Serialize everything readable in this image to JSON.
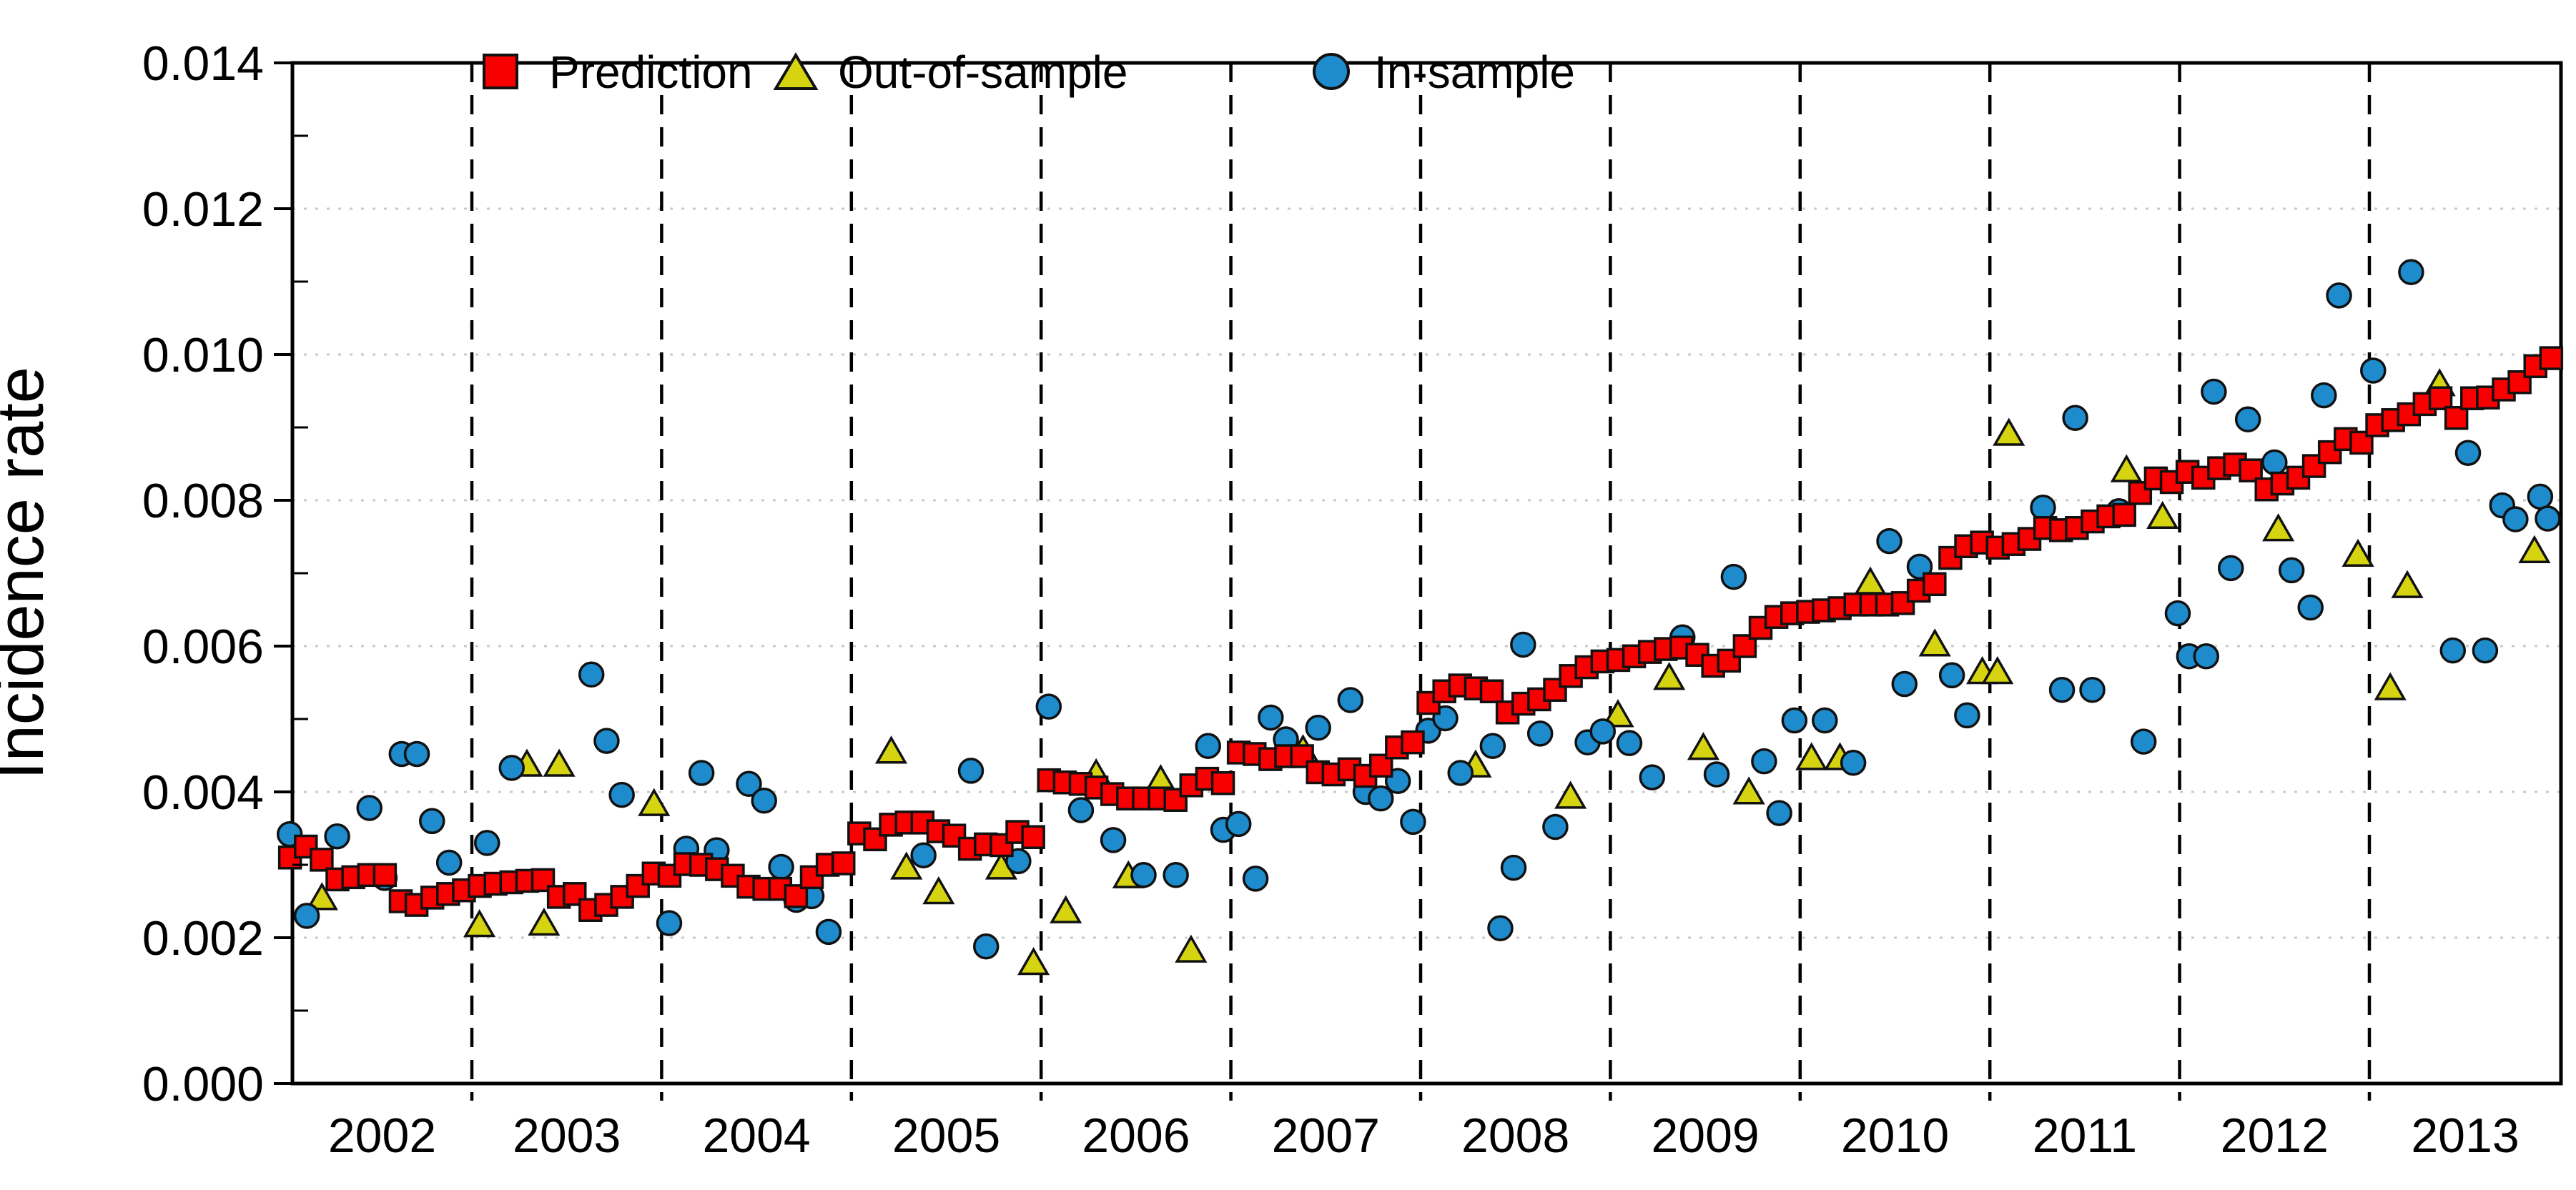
{
  "chart_data": {
    "type": "scatter",
    "title": "",
    "xlabel": "",
    "ylabel": "Incidence rate",
    "ylim": [
      0,
      0.014
    ],
    "xlim_years": [
      2002,
      2014
    ],
    "y_tick_labels": [
      "0.000",
      "0.002",
      "0.004",
      "0.006",
      "0.008",
      "0.010",
      "0.012",
      "0.014"
    ],
    "x_tick_labels": [
      "2002",
      "2003",
      "2004",
      "2005",
      "2006",
      "2007",
      "2008",
      "2009",
      "2010",
      "2011",
      "2012",
      "2013"
    ],
    "grid": {
      "horizontal": "dotted light gray at each 0.002",
      "vertical": "black dashed at year boundaries"
    },
    "legend_position": "top inside, horizontal",
    "colors": {
      "prediction": "#f80000",
      "out_of_sample": "#d6d411",
      "in_sample": "#1e8bcc",
      "marker_stroke": "#111111",
      "gridline": "#c9c9c9",
      "frame": "#000000"
    },
    "series": [
      {
        "name": "Prediction",
        "marker": "square",
        "color": "#f80000",
        "cadence": "monthly",
        "start_year": 2002,
        "values": [
          0.0031,
          0.00325,
          0.00307,
          0.0028,
          0.00283,
          0.00286,
          0.00286,
          0.0025,
          0.00245,
          0.00255,
          0.0026,
          0.00265,
          0.00271,
          0.00274,
          0.00276,
          0.00278,
          0.00279,
          0.00256,
          0.0026,
          0.00238,
          0.00245,
          0.00256,
          0.00271,
          0.00288,
          0.00285,
          0.00301,
          0.003,
          0.00294,
          0.00285,
          0.0027,
          0.00267,
          0.00267,
          0.00257,
          0.00283,
          0.003,
          0.00302,
          0.00343,
          0.00335,
          0.00355,
          0.00358,
          0.00358,
          0.00346,
          0.0034,
          0.00322,
          0.00328,
          0.00327,
          0.00345,
          0.00338,
          0.00416,
          0.00413,
          0.00411,
          0.00406,
          0.00397,
          0.00391,
          0.00391,
          0.00391,
          0.00389,
          0.00409,
          0.00418,
          0.00412,
          0.00454,
          0.00452,
          0.00445,
          0.00449,
          0.00449,
          0.00427,
          0.00424,
          0.00431,
          0.00422,
          0.00436,
          0.00461,
          0.00468,
          0.00522,
          0.00538,
          0.00546,
          0.00542,
          0.00538,
          0.00509,
          0.00521,
          0.00527,
          0.0054,
          0.00559,
          0.00571,
          0.00579,
          0.00581,
          0.00586,
          0.00592,
          0.00596,
          0.00598,
          0.00588,
          0.00573,
          0.0058,
          0.006,
          0.00625,
          0.0064,
          0.00645,
          0.00647,
          0.00649,
          0.00652,
          0.00657,
          0.00657,
          0.00657,
          0.00659,
          0.00676,
          0.00685,
          0.00721,
          0.00737,
          0.00742,
          0.00735,
          0.0074,
          0.00747,
          0.00762,
          0.00759,
          0.00762,
          0.00771,
          0.00778,
          0.0078,
          0.0081,
          0.0083,
          0.00825,
          0.00839,
          0.00831,
          0.00844,
          0.00849,
          0.00841,
          0.00815,
          0.00823,
          0.00831,
          0.00847,
          0.00866,
          0.00884,
          0.00879,
          0.00903,
          0.0091,
          0.00918,
          0.00932,
          0.0094,
          0.00913,
          0.0094,
          0.00941,
          0.00952,
          0.00962,
          0.00984,
          0.00995
        ]
      },
      {
        "name": "Out-of-sample",
        "marker": "triangle",
        "color": "#d6d411",
        "points": [
          [
            2002.21,
            0.00252
          ],
          [
            2003.04,
            0.00215
          ],
          [
            2003.29,
            0.00435
          ],
          [
            2003.38,
            0.00217
          ],
          [
            2003.46,
            0.00435
          ],
          [
            2003.96,
            0.00381
          ],
          [
            2005.21,
            0.00453
          ],
          [
            2005.29,
            0.00294
          ],
          [
            2005.46,
            0.0026
          ],
          [
            2005.79,
            0.00294
          ],
          [
            2005.96,
            0.00163
          ],
          [
            2006.13,
            0.00234
          ],
          [
            2006.29,
            0.00422
          ],
          [
            2006.46,
            0.00282
          ],
          [
            2006.63,
            0.00414
          ],
          [
            2006.79,
            0.0018
          ],
          [
            2007.38,
            0.00455
          ],
          [
            2008.29,
            0.00434
          ],
          [
            2008.79,
            0.00391
          ],
          [
            2009.04,
            0.00503
          ],
          [
            2009.31,
            0.00554
          ],
          [
            2009.49,
            0.00458
          ],
          [
            2009.73,
            0.00397
          ],
          [
            2010.06,
            0.00444
          ],
          [
            2010.21,
            0.00444
          ],
          [
            2010.37,
            0.00685
          ],
          [
            2010.71,
            0.006
          ],
          [
            2010.96,
            0.00562
          ],
          [
            2011.04,
            0.00562
          ],
          [
            2011.1,
            0.00889
          ],
          [
            2011.72,
            0.00839
          ],
          [
            2011.91,
            0.00775
          ],
          [
            2012.52,
            0.00758
          ],
          [
            2012.94,
            0.00723
          ],
          [
            2013.11,
            0.0054
          ],
          [
            2013.2,
            0.0068
          ],
          [
            2013.37,
            0.00957
          ],
          [
            2013.87,
            0.00728
          ]
        ]
      },
      {
        "name": "In-sample",
        "marker": "circle",
        "color": "#1e8bcc",
        "points": [
          [
            2002.04,
            0.00342
          ],
          [
            2002.13,
            0.0023
          ],
          [
            2002.29,
            0.00339
          ],
          [
            2002.46,
            0.00378
          ],
          [
            2002.54,
            0.00282
          ],
          [
            2002.63,
            0.00452
          ],
          [
            2002.71,
            0.00452
          ],
          [
            2002.79,
            0.0036
          ],
          [
            2002.88,
            0.00303
          ],
          [
            2003.08,
            0.0033
          ],
          [
            2003.21,
            0.00433
          ],
          [
            2003.63,
            0.00561
          ],
          [
            2003.71,
            0.0047
          ],
          [
            2003.79,
            0.00396
          ],
          [
            2004.04,
            0.0022
          ],
          [
            2004.13,
            0.00322
          ],
          [
            2004.21,
            0.00426
          ],
          [
            2004.29,
            0.0032
          ],
          [
            2004.46,
            0.00411
          ],
          [
            2004.54,
            0.00388
          ],
          [
            2004.63,
            0.00297
          ],
          [
            2004.71,
            0.00252
          ],
          [
            2004.79,
            0.00257
          ],
          [
            2004.88,
            0.00208
          ],
          [
            2005.38,
            0.00313
          ],
          [
            2005.63,
            0.00429
          ],
          [
            2005.71,
            0.00188
          ],
          [
            2005.88,
            0.00305
          ],
          [
            2006.04,
            0.00517
          ],
          [
            2006.21,
            0.00375
          ],
          [
            2006.38,
            0.00334
          ],
          [
            2006.54,
            0.00286
          ],
          [
            2006.71,
            0.00286
          ],
          [
            2006.88,
            0.00463
          ],
          [
            2006.96,
            0.00348
          ],
          [
            2007.04,
            0.00356
          ],
          [
            2007.13,
            0.00281
          ],
          [
            2007.21,
            0.00502
          ],
          [
            2007.29,
            0.00472
          ],
          [
            2007.46,
            0.00488
          ],
          [
            2007.63,
            0.00526
          ],
          [
            2007.71,
            0.004
          ],
          [
            2007.79,
            0.00391
          ],
          [
            2007.88,
            0.00415
          ],
          [
            2007.96,
            0.00359
          ],
          [
            2008.04,
            0.00484
          ],
          [
            2008.13,
            0.00501
          ],
          [
            2008.21,
            0.00426
          ],
          [
            2008.38,
            0.00463
          ],
          [
            2008.42,
            0.00213
          ],
          [
            2008.49,
            0.00296
          ],
          [
            2008.54,
            0.00602
          ],
          [
            2008.63,
            0.0048
          ],
          [
            2008.71,
            0.00352
          ],
          [
            2008.88,
            0.00468
          ],
          [
            2008.96,
            0.00483
          ],
          [
            2009.1,
            0.00467
          ],
          [
            2009.22,
            0.0042
          ],
          [
            2009.38,
            0.00612
          ],
          [
            2009.56,
            0.00424
          ],
          [
            2009.65,
            0.00695
          ],
          [
            2009.81,
            0.00442
          ],
          [
            2009.89,
            0.00371
          ],
          [
            2009.97,
            0.00498
          ],
          [
            2010.13,
            0.00498
          ],
          [
            2010.28,
            0.0044
          ],
          [
            2010.47,
            0.00744
          ],
          [
            2010.55,
            0.00548
          ],
          [
            2010.63,
            0.00709
          ],
          [
            2010.8,
            0.0056
          ],
          [
            2010.88,
            0.00505
          ],
          [
            2011.28,
            0.0079
          ],
          [
            2011.38,
            0.0054
          ],
          [
            2011.45,
            0.00913
          ],
          [
            2011.54,
            0.0054
          ],
          [
            2011.68,
            0.00785
          ],
          [
            2011.81,
            0.00469
          ],
          [
            2011.99,
            0.00645
          ],
          [
            2012.05,
            0.00586
          ],
          [
            2012.14,
            0.00586
          ],
          [
            2012.18,
            0.00949
          ],
          [
            2012.27,
            0.00707
          ],
          [
            2012.36,
            0.00911
          ],
          [
            2012.5,
            0.00852
          ],
          [
            2012.59,
            0.00704
          ],
          [
            2012.69,
            0.00653
          ],
          [
            2012.76,
            0.00944
          ],
          [
            2012.84,
            0.01081
          ],
          [
            2013.02,
            0.00978
          ],
          [
            2013.22,
            0.01113
          ],
          [
            2013.44,
            0.00594
          ],
          [
            2013.52,
            0.00865
          ],
          [
            2013.61,
            0.00594
          ],
          [
            2013.7,
            0.00793
          ],
          [
            2013.77,
            0.00774
          ],
          [
            2013.9,
            0.00805
          ],
          [
            2013.94,
            0.00775
          ]
        ]
      }
    ]
  }
}
